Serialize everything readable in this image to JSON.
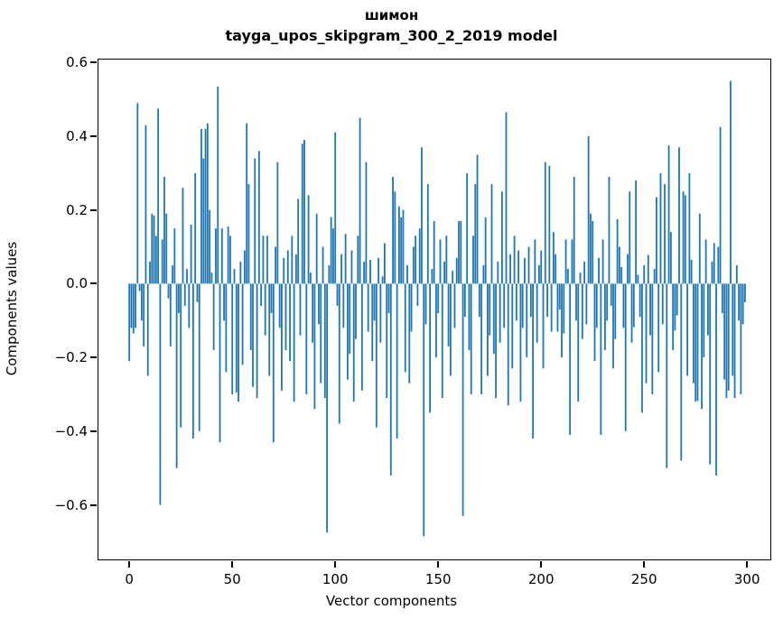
{
  "figure": {
    "title_line1": "шимон",
    "title_line2": "tayga_upos_skipgram_300_2_2019 model"
  },
  "chart_data": {
    "type": "bar",
    "title": "шимон",
    "subtitle": "tayga_upos_skipgram_300_2_2019 model",
    "xlabel": "Vector components",
    "ylabel": "Components values",
    "bar_color": "#1f77b4",
    "axis_color": "#000000",
    "grid": false,
    "legend": "none",
    "x_start": 0,
    "bar_width_units": 0.8,
    "xlim": [
      -15.0,
      311.3
    ],
    "ylim": [
      -0.748,
      0.608
    ],
    "xticks": [
      0,
      50,
      100,
      150,
      200,
      250,
      300
    ],
    "xtick_labels": [
      "0",
      "50",
      "100",
      "150",
      "200",
      "250",
      "300"
    ],
    "yticks": [
      0.6,
      0.4,
      0.2,
      0.0,
      -0.2,
      -0.4,
      -0.6
    ],
    "ytick_labels": [
      "0.6",
      "0.4",
      "0.2",
      "0.0",
      "−0.2",
      "−0.4",
      "−0.6"
    ],
    "values": [
      -0.21,
      -0.12,
      -0.135,
      -0.12,
      0.49,
      -0.02,
      -0.1,
      -0.17,
      0.43,
      -0.25,
      0.06,
      0.19,
      0.185,
      0.13,
      0.475,
      -0.6,
      0.12,
      0.29,
      0.19,
      -0.04,
      -0.17,
      0.05,
      0.15,
      -0.5,
      -0.08,
      -0.39,
      0.26,
      -0.06,
      0.04,
      -0.12,
      0.16,
      -0.42,
      0.3,
      -0.05,
      -0.4,
      0.42,
      0.34,
      0.42,
      0.435,
      0.2,
      0.03,
      -0.18,
      0.15,
      0.535,
      -0.43,
      0.15,
      -0.1,
      -0.24,
      0.155,
      0.13,
      -0.3,
      0.04,
      -0.295,
      -0.32,
      0.06,
      -0.22,
      0.09,
      0.435,
      0.27,
      -0.18,
      -0.28,
      0.34,
      -0.31,
      0.36,
      -0.06,
      0.13,
      -0.14,
      0.13,
      -0.25,
      -0.08,
      -0.43,
      0.1,
      0.33,
      -0.12,
      -0.29,
      0.07,
      -0.18,
      0.09,
      -0.21,
      0.13,
      -0.32,
      0.08,
      0.23,
      -0.14,
      0.38,
      0.39,
      -0.3,
      0.24,
      0.03,
      -0.16,
      -0.34,
      0.19,
      -0.11,
      -0.27,
      0.1,
      -0.31,
      -0.675,
      0.05,
      0.18,
      0.15,
      0.41,
      -0.06,
      -0.38,
      0.08,
      -0.12,
      0.135,
      -0.26,
      -0.19,
      0.09,
      -0.32,
      -0.15,
      0.13,
      0.45,
      -0.29,
      0.06,
      0.33,
      -0.13,
      0.065,
      -0.21,
      -0.1,
      -0.39,
      0.07,
      -0.16,
      0.02,
      0.11,
      -0.31,
      -0.08,
      -0.52,
      0.29,
      0.25,
      -0.42,
      0.21,
      0.18,
      0.2,
      -0.24,
      0.05,
      -0.27,
      -0.13,
      0.1,
      0.13,
      -0.06,
      0.15,
      0.37,
      -0.685,
      -0.11,
      0.27,
      -0.35,
      0.04,
      0.17,
      -0.2,
      -0.08,
      0.12,
      -0.31,
      0.06,
      0.13,
      -0.17,
      -0.25,
      0.035,
      -0.12,
      0.07,
      0.17,
      0.17,
      -0.63,
      -0.09,
      0.3,
      -0.18,
      -0.3,
      0.13,
      0.27,
      0.35,
      -0.09,
      -0.3,
      0.05,
      0.18,
      -0.25,
      -0.14,
      0.27,
      -0.19,
      -0.31,
      0.06,
      -0.16,
      0.25,
      -0.12,
      0.465,
      -0.33,
      0.08,
      -0.23,
      0.13,
      -0.1,
      0.09,
      -0.32,
      -0.12,
      0.07,
      -0.2,
      0.1,
      -0.09,
      -0.42,
      0.12,
      -0.16,
      0.05,
      0.09,
      -0.23,
      0.33,
      -0.09,
      0.32,
      -0.13,
      0.14,
      0.08,
      -0.13,
      -0.07,
      -0.2,
      -0.135,
      0.12,
      0.04,
      -0.41,
      0.12,
      0.29,
      -0.1,
      -0.32,
      0.03,
      -0.15,
      0.06,
      -0.11,
      0.4,
      0.19,
      0.17,
      -0.21,
      -0.12,
      0.07,
      -0.41,
      0.12,
      -0.18,
      -0.1,
      0.29,
      -0.06,
      -0.23,
      -0.15,
      0.175,
      0.1,
      0.045,
      -0.12,
      -0.4,
      0.08,
      0.25,
      -0.16,
      -0.118,
      0.28,
      0.024,
      -0.09,
      -0.35,
      0.05,
      -0.27,
      0.078,
      -0.14,
      -0.3,
      0.04,
      0.235,
      -0.24,
      0.3,
      -0.11,
      0.27,
      -0.5,
      0.375,
      0.14,
      -0.18,
      -0.127,
      -0.086,
      0.37,
      -0.48,
      0.25,
      0.24,
      -0.25,
      0.3,
      0.065,
      -0.27,
      -0.32,
      -0.318,
      0.19,
      -0.34,
      -0.2,
      0.12,
      -0.14,
      -0.49,
      0.06,
      0.11,
      -0.52,
      0.1,
      0.425,
      -0.08,
      -0.26,
      -0.31,
      -0.29,
      0.55,
      -0.25,
      -0.31,
      0.05,
      -0.1,
      -0.3,
      -0.11,
      -0.05
    ]
  }
}
